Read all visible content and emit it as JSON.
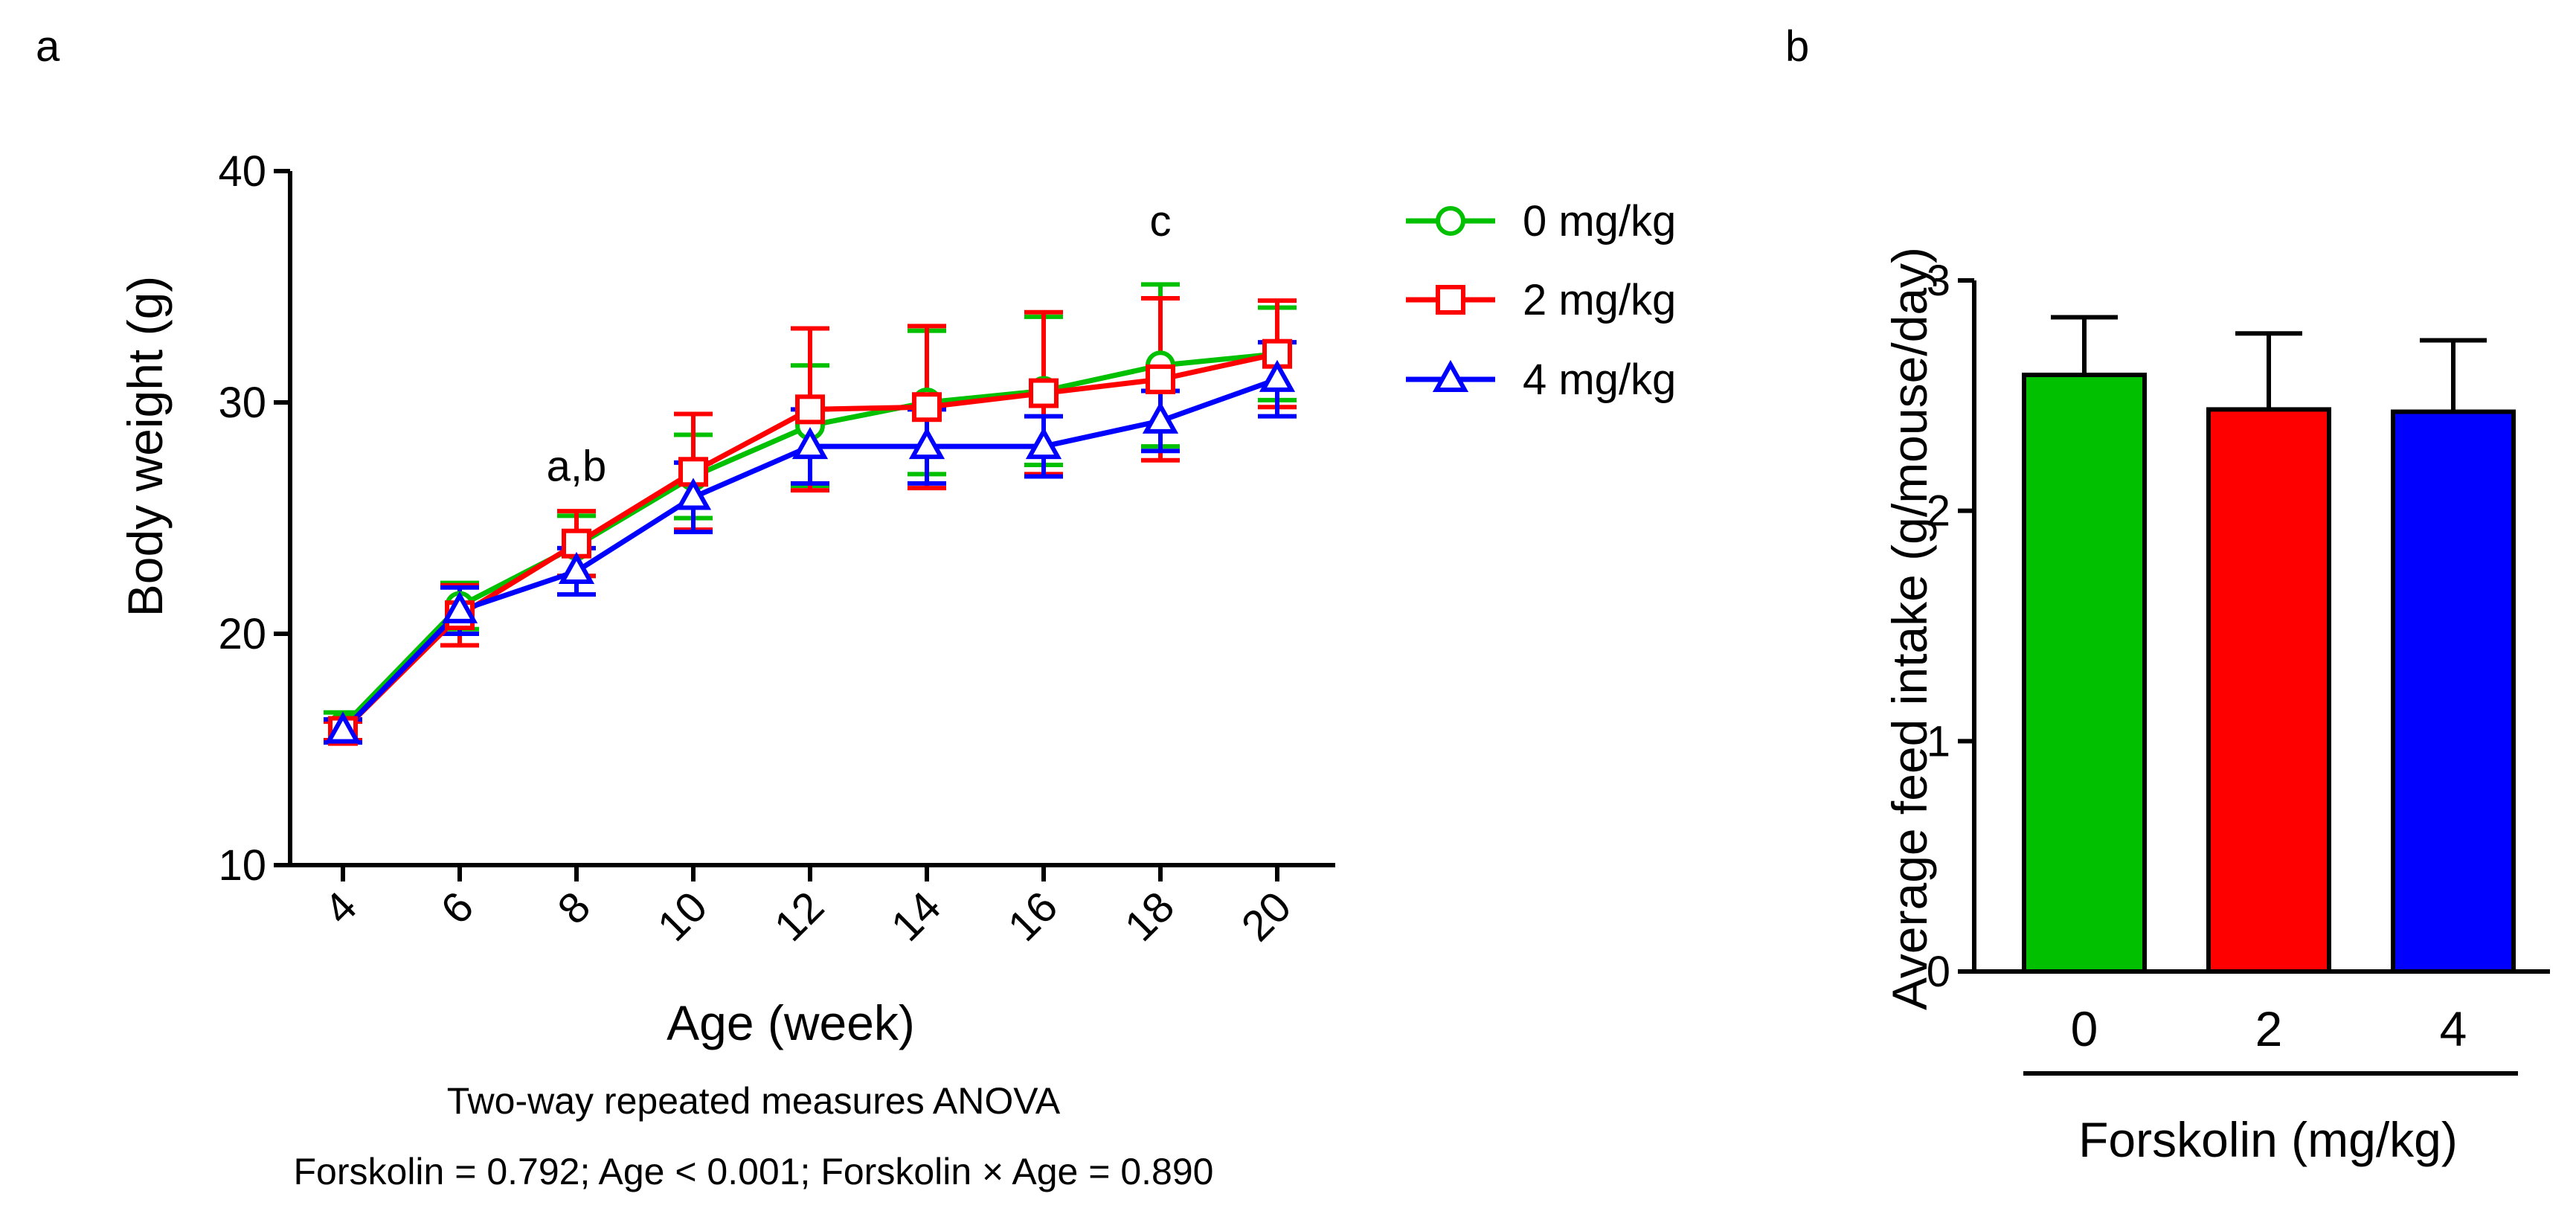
{
  "panel_a_label": "a",
  "panel_b_label": "b",
  "chart_data": [
    {
      "type": "line",
      "xlabel": "Age (week)",
      "ylabel": "Body weight (g)",
      "x": [
        4,
        6,
        8,
        10,
        12,
        14,
        16,
        18,
        20
      ],
      "x_tick_labels": [
        "4",
        "6",
        "8",
        "10",
        "12",
        "14",
        "16",
        "18",
        "20"
      ],
      "ylim": [
        10,
        40
      ],
      "y_ticks": [
        10,
        20,
        30,
        40
      ],
      "y_tick_labels": [
        "10",
        "20",
        "30",
        "40"
      ],
      "legend_position": "right",
      "series": [
        {
          "name": "0 mg/kg",
          "color": "#00c000",
          "marker": "circle",
          "values": [
            16.0,
            21.2,
            23.8,
            26.8,
            29.0,
            30.0,
            30.5,
            31.6,
            32.1
          ],
          "errors": [
            0.6,
            1.0,
            1.3,
            1.8,
            2.6,
            3.1,
            3.2,
            3.5,
            2.0
          ]
        },
        {
          "name": "2 mg/kg",
          "color": "#ff0000",
          "marker": "square",
          "values": [
            15.8,
            20.8,
            23.9,
            27.0,
            29.7,
            29.8,
            30.4,
            31.0,
            32.1
          ],
          "errors": [
            0.4,
            1.3,
            1.4,
            2.5,
            3.5,
            3.5,
            3.5,
            3.5,
            2.3
          ]
        },
        {
          "name": "4 mg/kg",
          "color": "#0000ff",
          "marker": "triangle",
          "values": [
            15.8,
            21.0,
            22.7,
            25.9,
            28.1,
            28.1,
            28.1,
            29.2,
            31.0
          ],
          "errors": [
            0.5,
            1.0,
            1.0,
            1.5,
            1.6,
            1.6,
            1.3,
            1.3,
            1.6
          ]
        }
      ],
      "annotations": [
        {
          "text": "a,b",
          "x": 8,
          "y": 26.6
        },
        {
          "text": "c",
          "x": 18,
          "y": 37.2
        }
      ],
      "notes": [
        "Two-way repeated measures ANOVA",
        "Forskolin = 0.792; Age < 0.001; Forskolin × Age = 0.890"
      ]
    },
    {
      "type": "bar",
      "categories": [
        "0",
        "2",
        "4"
      ],
      "values": [
        2.59,
        2.44,
        2.43
      ],
      "errors": [
        0.25,
        0.33,
        0.31
      ],
      "colors": [
        "#00c000",
        "#ff0000",
        "#0000ff"
      ],
      "ylabel": "Average feed intake (g/mouse/day)",
      "xlabel": "Forskolin (mg/kg)",
      "ylim": [
        0,
        3
      ],
      "y_ticks": [
        0,
        1,
        2,
        3
      ],
      "y_tick_labels": [
        "0",
        "1",
        "2",
        "3"
      ]
    }
  ]
}
